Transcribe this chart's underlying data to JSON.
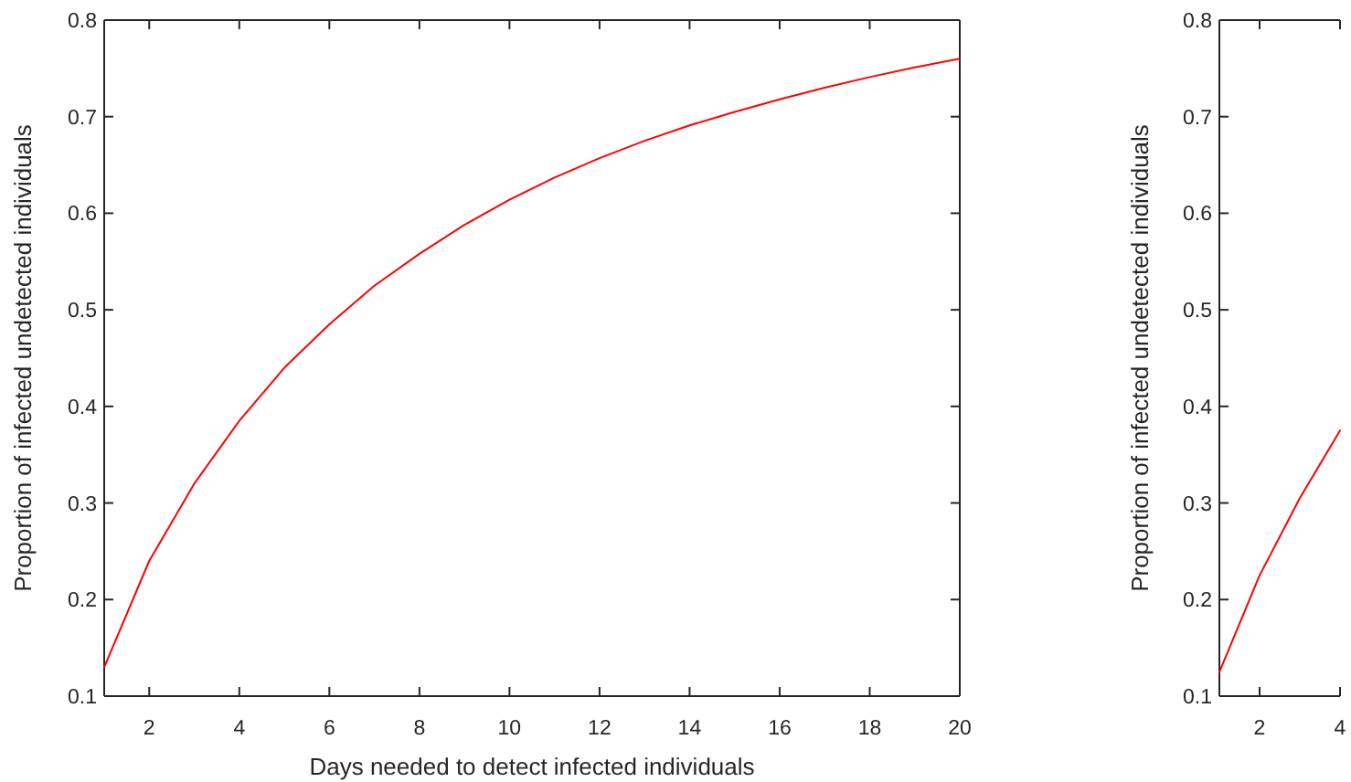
{
  "chart_data": [
    {
      "type": "line",
      "xlabel": "Days needed to detect infected individuals",
      "ylabel": "Proportion of infected undetected individuals",
      "x": [
        1,
        2,
        3,
        4,
        5,
        6,
        7,
        8,
        9,
        10,
        11,
        12,
        13,
        14,
        15,
        16,
        17,
        18,
        19,
        20
      ],
      "series": [
        {
          "color": "#ff0000",
          "values": [
            0.13,
            0.24,
            0.32,
            0.385,
            0.44,
            0.485,
            0.525,
            0.558,
            0.588,
            0.614,
            0.637,
            0.657,
            0.675,
            0.691,
            0.705,
            0.718,
            0.73,
            0.741,
            0.751,
            0.76
          ]
        }
      ],
      "xlim": [
        1,
        20
      ],
      "ylim": [
        0.1,
        0.8
      ],
      "xticks": [
        2,
        4,
        6,
        8,
        10,
        12,
        14,
        16,
        18,
        20
      ],
      "yticks": [
        0.1,
        0.2,
        0.3,
        0.4,
        0.5,
        0.6,
        0.7,
        0.8
      ],
      "line_style": "solid"
    },
    {
      "type": "line",
      "ylabel": "Proportion of infected undetected individuals",
      "x": [
        1,
        2,
        3,
        4
      ],
      "series": [
        {
          "color": "#ff0000",
          "values": [
            0.125,
            0.225,
            0.305,
            0.375
          ]
        }
      ],
      "xlim": [
        1,
        4
      ],
      "ylim": [
        0.1,
        0.8
      ],
      "xticks": [
        2,
        4
      ],
      "yticks": [
        0.1,
        0.2,
        0.3,
        0.4,
        0.5,
        0.6,
        0.7,
        0.8
      ],
      "line_style": "solid"
    }
  ]
}
